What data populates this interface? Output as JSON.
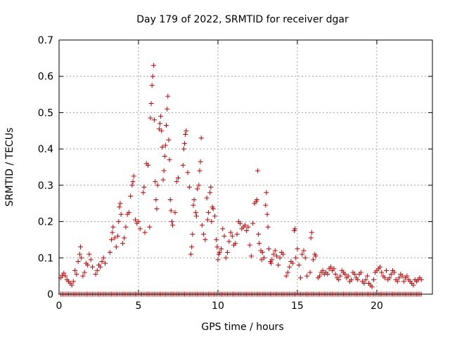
{
  "chart_data": {
    "type": "scatter",
    "title": "Day 179 of 2022, SRMTID for receiver dgar",
    "xlabel": "GPS time / hours",
    "ylabel": "SRMTID / TECUs",
    "xlim": [
      0,
      23.5
    ],
    "ylim": [
      0,
      0.7
    ],
    "xticks": [
      0,
      5,
      10,
      15,
      20
    ],
    "xtick_labels": [
      "0",
      "5",
      "10",
      "15",
      "20"
    ],
    "yticks": [
      0,
      0.1,
      0.2,
      0.3,
      0.4,
      0.5,
      0.6,
      0.7
    ],
    "ytick_labels": [
      "0",
      "0.1",
      "0.2",
      "0.3",
      "0.4",
      "0.5",
      "0.6",
      "0.7"
    ],
    "grid": true,
    "marker": "+",
    "series": [
      {
        "name": "SRMTID",
        "color": "#cc0000",
        "points": [
          [
            0.1,
            0.045
          ],
          [
            0.2,
            0.052
          ],
          [
            0.3,
            0.058
          ],
          [
            0.4,
            0.05
          ],
          [
            0.5,
            0.04
          ],
          [
            0.6,
            0.035
          ],
          [
            0.7,
            0.03
          ],
          [
            0.8,
            0.025
          ],
          [
            0.9,
            0.035
          ],
          [
            1.0,
            0.065
          ],
          [
            1.1,
            0.055
          ],
          [
            1.2,
            0.09
          ],
          [
            1.3,
            0.11
          ],
          [
            1.35,
            0.13
          ],
          [
            1.4,
            0.1
          ],
          [
            1.5,
            0.05
          ],
          [
            1.6,
            0.06
          ],
          [
            1.7,
            0.085
          ],
          [
            1.8,
            0.08
          ],
          [
            1.9,
            0.11
          ],
          [
            2.0,
            0.095
          ],
          [
            2.1,
            0.075
          ],
          [
            2.3,
            0.055
          ],
          [
            2.4,
            0.065
          ],
          [
            2.5,
            0.08
          ],
          [
            2.6,
            0.075
          ],
          [
            2.7,
            0.09
          ],
          [
            2.8,
            0.1
          ],
          [
            2.9,
            0.085
          ],
          [
            3.2,
            0.115
          ],
          [
            3.3,
            0.15
          ],
          [
            3.35,
            0.17
          ],
          [
            3.4,
            0.185
          ],
          [
            3.5,
            0.155
          ],
          [
            3.6,
            0.13
          ],
          [
            3.7,
            0.16
          ],
          [
            3.75,
            0.2
          ],
          [
            3.8,
            0.24
          ],
          [
            3.85,
            0.25
          ],
          [
            3.9,
            0.22
          ],
          [
            4.0,
            0.14
          ],
          [
            4.1,
            0.155
          ],
          [
            4.2,
            0.185
          ],
          [
            4.3,
            0.22
          ],
          [
            4.4,
            0.225
          ],
          [
            4.5,
            0.27
          ],
          [
            4.6,
            0.3
          ],
          [
            4.65,
            0.31
          ],
          [
            4.7,
            0.325
          ],
          [
            4.8,
            0.205
          ],
          [
            4.9,
            0.195
          ],
          [
            5.0,
            0.2
          ],
          [
            5.1,
            0.18
          ],
          [
            5.3,
            0.28
          ],
          [
            5.35,
            0.295
          ],
          [
            5.4,
            0.17
          ],
          [
            5.5,
            0.36
          ],
          [
            5.6,
            0.355
          ],
          [
            5.7,
            0.185
          ],
          [
            5.75,
            0.485
          ],
          [
            5.8,
            0.525
          ],
          [
            5.85,
            0.575
          ],
          [
            5.9,
            0.6
          ],
          [
            5.95,
            0.63
          ],
          [
            6.0,
            0.48
          ],
          [
            6.05,
            0.31
          ],
          [
            6.1,
            0.26
          ],
          [
            6.15,
            0.235
          ],
          [
            6.2,
            0.3
          ],
          [
            6.3,
            0.455
          ],
          [
            6.35,
            0.47
          ],
          [
            6.4,
            0.49
          ],
          [
            6.45,
            0.45
          ],
          [
            6.5,
            0.405
          ],
          [
            6.55,
            0.315
          ],
          [
            6.6,
            0.34
          ],
          [
            6.65,
            0.38
          ],
          [
            6.7,
            0.41
          ],
          [
            6.75,
            0.465
          ],
          [
            6.8,
            0.51
          ],
          [
            6.85,
            0.545
          ],
          [
            6.9,
            0.425
          ],
          [
            6.95,
            0.37
          ],
          [
            7.0,
            0.26
          ],
          [
            7.05,
            0.23
          ],
          [
            7.1,
            0.2
          ],
          [
            7.15,
            0.19
          ],
          [
            7.3,
            0.225
          ],
          [
            7.4,
            0.31
          ],
          [
            7.5,
            0.32
          ],
          [
            7.8,
            0.355
          ],
          [
            7.85,
            0.4
          ],
          [
            7.9,
            0.415
          ],
          [
            7.95,
            0.44
          ],
          [
            8.0,
            0.45
          ],
          [
            8.1,
            0.335
          ],
          [
            8.2,
            0.295
          ],
          [
            8.3,
            0.11
          ],
          [
            8.35,
            0.13
          ],
          [
            8.4,
            0.165
          ],
          [
            8.45,
            0.245
          ],
          [
            8.5,
            0.26
          ],
          [
            8.6,
            0.225
          ],
          [
            8.65,
            0.215
          ],
          [
            8.7,
            0.29
          ],
          [
            8.8,
            0.3
          ],
          [
            8.85,
            0.34
          ],
          [
            8.9,
            0.365
          ],
          [
            8.95,
            0.43
          ],
          [
            9.0,
            0.19
          ],
          [
            9.1,
            0.165
          ],
          [
            9.2,
            0.15
          ],
          [
            9.3,
            0.265
          ],
          [
            9.35,
            0.205
          ],
          [
            9.4,
            0.225
          ],
          [
            9.5,
            0.28
          ],
          [
            9.55,
            0.295
          ],
          [
            9.6,
            0.2
          ],
          [
            9.65,
            0.24
          ],
          [
            9.7,
            0.235
          ],
          [
            9.8,
            0.215
          ],
          [
            9.9,
            0.15
          ],
          [
            9.95,
            0.13
          ],
          [
            10.0,
            0.095
          ],
          [
            10.05,
            0.11
          ],
          [
            10.1,
            0.115
          ],
          [
            10.2,
            0.125
          ],
          [
            10.3,
            0.18
          ],
          [
            10.4,
            0.16
          ],
          [
            10.5,
            0.1
          ],
          [
            10.6,
            0.115
          ],
          [
            10.7,
            0.145
          ],
          [
            10.8,
            0.17
          ],
          [
            10.9,
            0.16
          ],
          [
            11.0,
            0.135
          ],
          [
            11.1,
            0.14
          ],
          [
            11.2,
            0.165
          ],
          [
            11.3,
            0.2
          ],
          [
            11.4,
            0.195
          ],
          [
            11.5,
            0.18
          ],
          [
            11.6,
            0.185
          ],
          [
            11.7,
            0.19
          ],
          [
            11.8,
            0.175
          ],
          [
            11.9,
            0.185
          ],
          [
            12.0,
            0.135
          ],
          [
            12.1,
            0.105
          ],
          [
            12.2,
            0.195
          ],
          [
            12.3,
            0.25
          ],
          [
            12.4,
            0.255
          ],
          [
            12.45,
            0.26
          ],
          [
            12.5,
            0.34
          ],
          [
            12.55,
            0.165
          ],
          [
            12.6,
            0.14
          ],
          [
            12.7,
            0.12
          ],
          [
            12.75,
            0.095
          ],
          [
            12.8,
            0.115
          ],
          [
            12.9,
            0.1
          ],
          [
            13.0,
            0.245
          ],
          [
            13.05,
            0.28
          ],
          [
            13.1,
            0.22
          ],
          [
            13.15,
            0.185
          ],
          [
            13.2,
            0.125
          ],
          [
            13.3,
            0.09
          ],
          [
            13.35,
            0.085
          ],
          [
            13.4,
            0.095
          ],
          [
            13.5,
            0.11
          ],
          [
            13.6,
            0.12
          ],
          [
            13.7,
            0.105
          ],
          [
            13.8,
            0.08
          ],
          [
            13.9,
            0.1
          ],
          [
            14.0,
            0.115
          ],
          [
            14.1,
            0.11
          ],
          [
            14.3,
            0.05
          ],
          [
            14.4,
            0.06
          ],
          [
            14.5,
            0.075
          ],
          [
            14.6,
            0.09
          ],
          [
            14.7,
            0.085
          ],
          [
            14.8,
            0.175
          ],
          [
            14.85,
            0.18
          ],
          [
            14.9,
            0.1
          ],
          [
            15.0,
            0.125
          ],
          [
            15.1,
            0.08
          ],
          [
            15.2,
            0.045
          ],
          [
            15.3,
            0.11
          ],
          [
            15.4,
            0.12
          ],
          [
            15.5,
            0.1
          ],
          [
            15.6,
            0.05
          ],
          [
            15.8,
            0.06
          ],
          [
            15.85,
            0.155
          ],
          [
            15.9,
            0.17
          ],
          [
            16.0,
            0.095
          ],
          [
            16.1,
            0.11
          ],
          [
            16.15,
            0.105
          ],
          [
            16.3,
            0.045
          ],
          [
            16.4,
            0.05
          ],
          [
            16.5,
            0.06
          ],
          [
            16.6,
            0.065
          ],
          [
            16.7,
            0.055
          ],
          [
            16.8,
            0.06
          ],
          [
            16.9,
            0.055
          ],
          [
            17.0,
            0.07
          ],
          [
            17.1,
            0.075
          ],
          [
            17.2,
            0.065
          ],
          [
            17.3,
            0.07
          ],
          [
            17.4,
            0.055
          ],
          [
            17.5,
            0.045
          ],
          [
            17.6,
            0.04
          ],
          [
            17.7,
            0.05
          ],
          [
            17.8,
            0.065
          ],
          [
            17.9,
            0.06
          ],
          [
            18.0,
            0.055
          ],
          [
            18.1,
            0.045
          ],
          [
            18.2,
            0.05
          ],
          [
            18.3,
            0.035
          ],
          [
            18.4,
            0.04
          ],
          [
            18.5,
            0.06
          ],
          [
            18.6,
            0.055
          ],
          [
            18.7,
            0.045
          ],
          [
            18.8,
            0.04
          ],
          [
            18.9,
            0.055
          ],
          [
            19.0,
            0.06
          ],
          [
            19.1,
            0.035
          ],
          [
            19.2,
            0.03
          ],
          [
            19.3,
            0.04
          ],
          [
            19.4,
            0.05
          ],
          [
            19.5,
            0.03
          ],
          [
            19.6,
            0.025
          ],
          [
            19.7,
            0.02
          ],
          [
            19.8,
            0.04
          ],
          [
            19.9,
            0.06
          ],
          [
            20.0,
            0.065
          ],
          [
            20.1,
            0.07
          ],
          [
            20.2,
            0.075
          ],
          [
            20.3,
            0.06
          ],
          [
            20.4,
            0.05
          ],
          [
            20.5,
            0.045
          ],
          [
            20.6,
            0.065
          ],
          [
            20.7,
            0.04
          ],
          [
            20.8,
            0.045
          ],
          [
            20.9,
            0.055
          ],
          [
            21.0,
            0.065
          ],
          [
            21.1,
            0.06
          ],
          [
            21.2,
            0.04
          ],
          [
            21.3,
            0.035
          ],
          [
            21.4,
            0.045
          ],
          [
            21.5,
            0.055
          ],
          [
            21.6,
            0.05
          ],
          [
            21.7,
            0.035
          ],
          [
            21.8,
            0.045
          ],
          [
            21.9,
            0.05
          ],
          [
            22.0,
            0.04
          ],
          [
            22.1,
            0.035
          ],
          [
            22.2,
            0.03
          ],
          [
            22.3,
            0.025
          ],
          [
            22.4,
            0.04
          ],
          [
            22.5,
            0.035
          ],
          [
            22.6,
            0.04
          ],
          [
            22.7,
            0.045
          ],
          [
            22.8,
            0.04
          ]
        ],
        "zero_points": [
          0.1,
          0.2,
          0.3,
          0.4,
          0.5,
          0.6,
          0.7,
          0.8,
          0.9,
          1.0,
          1.1,
          1.2,
          1.3,
          1.4,
          1.5,
          1.6,
          1.7,
          1.8,
          1.9,
          2.0,
          2.1,
          2.2,
          2.3,
          2.4,
          2.5,
          2.6,
          2.7,
          2.8,
          2.9,
          3.0,
          3.1,
          3.2,
          3.3,
          3.4,
          3.5,
          3.6,
          3.7,
          3.8,
          3.9,
          4.0,
          4.1,
          4.2,
          4.3,
          4.4,
          4.5,
          4.6,
          4.7,
          4.8,
          4.9,
          5.0,
          5.1,
          5.2,
          5.3,
          5.4,
          5.5,
          5.6,
          5.7,
          5.8,
          5.9,
          6.0,
          6.1,
          6.2,
          6.3,
          6.4,
          6.5,
          6.6,
          6.7,
          6.8,
          6.9,
          7.0,
          7.1,
          7.2,
          7.3,
          7.4,
          7.5,
          7.6,
          7.7,
          7.8,
          7.9,
          8.0,
          8.1,
          8.2,
          8.3,
          8.4,
          8.5,
          8.6,
          8.7,
          8.8,
          8.9,
          9.0,
          9.1,
          9.2,
          9.3,
          9.4,
          9.5,
          9.6,
          9.7,
          9.8,
          9.9,
          10.0,
          10.1,
          10.2,
          10.3,
          10.4,
          10.5,
          10.6,
          10.7,
          10.8,
          10.9,
          11.0,
          11.1,
          11.2,
          11.3,
          11.4,
          11.5,
          11.6,
          11.7,
          11.8,
          11.9,
          12.0,
          12.1,
          12.2,
          12.3,
          12.4,
          12.5,
          12.6,
          12.7,
          12.8,
          12.9,
          13.0,
          13.1,
          13.2,
          13.3,
          13.4,
          13.5,
          13.6,
          13.7,
          13.8,
          13.9,
          14.0,
          14.1,
          14.2,
          14.3,
          14.4,
          14.5,
          14.6,
          14.7,
          14.8,
          14.9,
          15.0,
          15.1,
          15.2,
          15.3,
          15.4,
          15.5,
          15.6,
          15.7,
          15.8,
          15.9,
          16.0,
          16.1,
          16.2,
          16.3,
          16.4,
          16.5,
          16.6,
          16.7,
          16.8,
          16.9,
          17.0,
          17.1,
          17.2,
          17.3,
          17.4,
          17.5,
          17.6,
          17.7,
          17.8,
          17.9,
          18.0,
          18.1,
          18.2,
          18.3,
          18.4,
          18.5,
          18.6,
          18.7,
          18.8,
          18.9,
          19.0,
          19.1,
          19.2,
          19.3,
          19.4,
          19.5,
          19.6,
          19.7,
          19.8,
          19.9,
          20.0,
          20.1,
          20.2,
          20.3,
          20.4,
          20.5,
          20.6,
          20.7,
          20.8,
          20.9,
          21.0,
          21.1,
          21.2,
          21.3,
          21.4,
          21.5,
          21.6,
          21.7,
          21.8,
          21.9,
          22.0,
          22.1,
          22.2,
          22.3,
          22.4,
          22.5,
          22.6,
          22.7,
          22.8
        ]
      }
    ]
  }
}
